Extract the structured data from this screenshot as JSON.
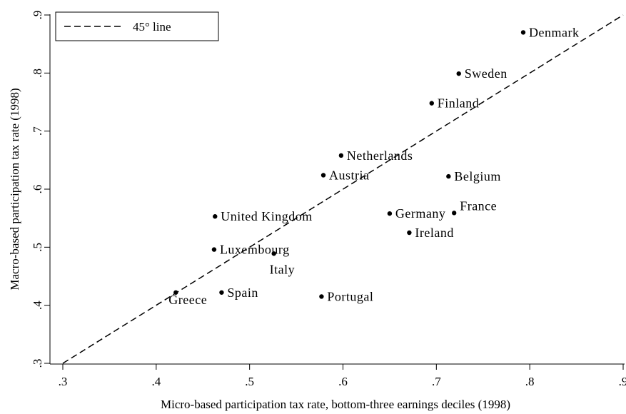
{
  "chart_data": {
    "type": "scatter",
    "xlabel": "Micro-based participation tax rate, bottom-three earnings deciles (1998)",
    "ylabel": "Macro-based participation tax rate (1998)",
    "xlim": [
      0.3,
      0.9
    ],
    "ylim": [
      0.3,
      0.9
    ],
    "xticks": [
      ".3",
      ".4",
      ".5",
      ".6",
      ".7",
      ".8",
      ".9"
    ],
    "yticks": [
      ".3",
      ".4",
      ".5",
      ".6",
      ".7",
      ".8",
      ".9"
    ],
    "grid": false,
    "legend": {
      "position": "top-left",
      "entries": [
        "45° line"
      ]
    },
    "reference_line": {
      "label": "45° line",
      "style": "dashed",
      "from": [
        0.3,
        0.3
      ],
      "to": [
        0.9,
        0.9
      ]
    },
    "points": [
      {
        "label": "Denmark",
        "x": 0.793,
        "y": 0.87,
        "label_pos": "right"
      },
      {
        "label": "Sweden",
        "x": 0.724,
        "y": 0.799,
        "label_pos": "right"
      },
      {
        "label": "Finland",
        "x": 0.695,
        "y": 0.748,
        "label_pos": "right"
      },
      {
        "label": "Netherlands",
        "x": 0.598,
        "y": 0.658,
        "label_pos": "right"
      },
      {
        "label": "Austria",
        "x": 0.579,
        "y": 0.624,
        "label_pos": "right"
      },
      {
        "label": "Belgium",
        "x": 0.713,
        "y": 0.622,
        "label_pos": "right"
      },
      {
        "label": "France",
        "x": 0.719,
        "y": 0.559,
        "label_pos": "above-right"
      },
      {
        "label": "Germany",
        "x": 0.65,
        "y": 0.558,
        "label_pos": "right"
      },
      {
        "label": "Ireland",
        "x": 0.671,
        "y": 0.525,
        "label_pos": "right"
      },
      {
        "label": "United Kingdom",
        "x": 0.463,
        "y": 0.553,
        "label_pos": "right"
      },
      {
        "label": "Luxembourg",
        "x": 0.462,
        "y": 0.496,
        "label_pos": "right"
      },
      {
        "label": "Italy",
        "x": 0.526,
        "y": 0.489,
        "label_pos": "below"
      },
      {
        "label": "Spain",
        "x": 0.47,
        "y": 0.422,
        "label_pos": "right"
      },
      {
        "label": "Portugal",
        "x": 0.577,
        "y": 0.415,
        "label_pos": "right"
      },
      {
        "label": "Greece",
        "x": 0.421,
        "y": 0.422,
        "label_pos": "below-left"
      }
    ]
  }
}
